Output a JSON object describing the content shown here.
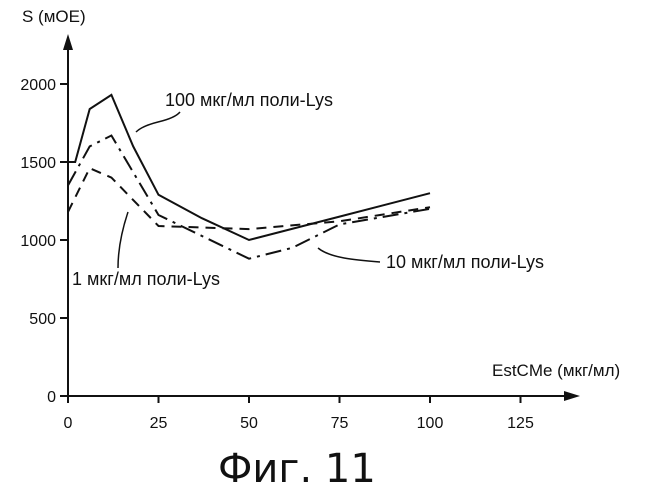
{
  "chart_data": {
    "type": "line",
    "title": "",
    "xlabel": "EstCMe (мкг/мл)",
    "ylabel": "S (мОЕ)",
    "xlim": [
      0,
      135
    ],
    "ylim": [
      0,
      2150
    ],
    "x_ticks": [
      0,
      25,
      50,
      75,
      100,
      125
    ],
    "y_ticks": [
      0,
      500,
      1000,
      1500,
      2000
    ],
    "grid": false,
    "series": [
      {
        "name": "100 мкг/мл поли-Lys",
        "style": "solid",
        "x": [
          0,
          2,
          6,
          12,
          18,
          25,
          37,
          50,
          75,
          100
        ],
        "y": [
          1500,
          1500,
          1840,
          1930,
          1600,
          1290,
          1140,
          1000,
          1150,
          1300
        ]
      },
      {
        "name": "10 мкг/мл поли-Lys",
        "style": "dashdot",
        "x": [
          0,
          6,
          12,
          25,
          50,
          62,
          75,
          100
        ],
        "y": [
          1350,
          1600,
          1670,
          1160,
          880,
          950,
          1100,
          1200
        ]
      },
      {
        "name": "1 мкг/мл поли-Lys",
        "style": "dashed",
        "x": [
          0,
          6,
          12,
          25,
          50,
          75,
          100
        ],
        "y": [
          1180,
          1460,
          1400,
          1090,
          1070,
          1120,
          1210
        ]
      }
    ]
  },
  "caption": "Фиг. 11"
}
